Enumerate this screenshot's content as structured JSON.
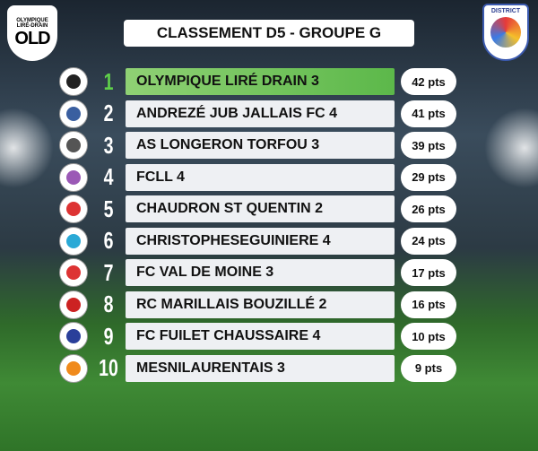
{
  "header": {
    "title": "CLASSEMENT D5 - GROUPE G",
    "club_logo": {
      "name": "OLYMPIQUE LIRÉ-DRAIN",
      "initials": "OLD"
    },
    "district_logo": {
      "label": "DISTRICT"
    }
  },
  "table": {
    "rows": [
      {
        "rank": "1",
        "team": "OLYMPIQUE LIRÉ DRAIN 3",
        "points": "42 pts"
      },
      {
        "rank": "2",
        "team": "ANDREZÉ JUB JALLAIS FC 4",
        "points": "41 pts"
      },
      {
        "rank": "3",
        "team": "AS LONGERON TORFOU 3",
        "points": "39 pts"
      },
      {
        "rank": "4",
        "team": "FCLL 4",
        "points": "29 pts"
      },
      {
        "rank": "5",
        "team": "CHAUDRON ST QUENTIN 2",
        "points": "26 pts"
      },
      {
        "rank": "6",
        "team": "CHRISTOPHESEGUINIERE 4",
        "points": "24 pts"
      },
      {
        "rank": "7",
        "team": "FC VAL DE MOINE 3",
        "points": "17 pts"
      },
      {
        "rank": "8",
        "team": "RC MARILLAIS BOUZILLÉ 2",
        "points": "16 pts"
      },
      {
        "rank": "9",
        "team": "FC FUILET CHAUSSAIRE 4",
        "points": "10 pts"
      },
      {
        "rank": "10",
        "team": "MESNILAURENTAIS 3",
        "points": "9 pts"
      }
    ]
  }
}
